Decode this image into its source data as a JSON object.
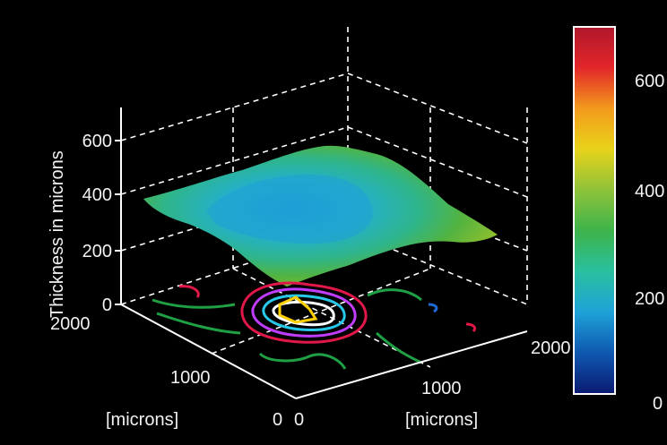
{
  "chart_data": {
    "type": "surface3d",
    "title": "",
    "zlabel": "Thickness in microns",
    "xlabel": "[microns]",
    "ylabel": "[microns]",
    "zlim": [
      0,
      700
    ],
    "xlim": [
      0,
      2000
    ],
    "ylim": [
      0,
      2000
    ],
    "z_ticks": [
      "0",
      "200",
      "400",
      "600"
    ],
    "left_axis_ticks": [
      "2000",
      "1000",
      "0"
    ],
    "right_axis_ticks": [
      "0",
      "1000",
      "2000"
    ],
    "colorbar": {
      "range": [
        0,
        680
      ],
      "tick_labels": [
        "0",
        "200",
        "400",
        "600"
      ],
      "colors": [
        "#0a1a70",
        "#0f57b0",
        "#1ea2d8",
        "#29c0a0",
        "#3db34a",
        "#8fc23a",
        "#e8d31a",
        "#f39a1c",
        "#e3262a",
        "#b0172c"
      ]
    },
    "surface": {
      "description_values": {
        "rim_thickness": 380,
        "center_thickness": 300,
        "min_thickness": 220
      }
    },
    "contour_colors": [
      "#e0184a",
      "#c03cff",
      "#27c8e8",
      "#ffffff",
      "#ffd000",
      "#1fa044"
    ],
    "grid": true
  }
}
